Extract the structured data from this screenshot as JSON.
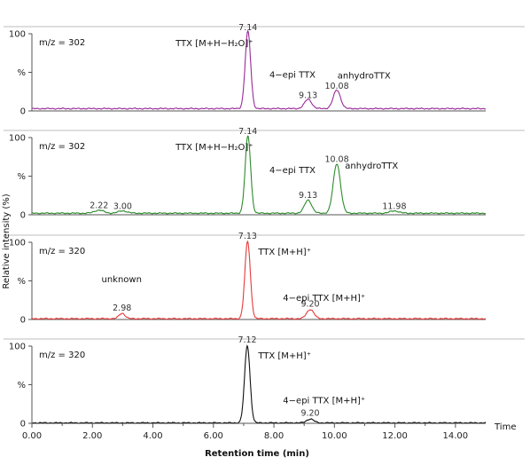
{
  "chart_data": {
    "type": "line",
    "ylabel": "Relative intensity (%)",
    "xlabel": "Retention time (min)",
    "x_unit_label": "Time",
    "xlim": [
      0,
      15
    ],
    "x_ticks": [
      "0.00",
      "2.00",
      "4.00",
      "6.00",
      "8.00",
      "10.00",
      "12.00",
      "14.00"
    ],
    "y_ticks": [
      "0",
      "%",
      "100"
    ],
    "panels": [
      {
        "mz_label": "m/z = 302",
        "color": "#9a2a9a",
        "ylim": [
          0,
          100
        ],
        "peaks": [
          [
            7.14,
            100,
            0.09
          ],
          [
            9.13,
            12,
            0.12
          ],
          [
            10.08,
            24,
            0.12
          ]
        ],
        "baseline": 3,
        "peak_labels": [
          {
            "text": "7.14",
            "x": 7.14,
            "y": 100
          },
          {
            "text": "9.13",
            "x": 9.13,
            "y": 12
          },
          {
            "text": "10.08",
            "x": 10.08,
            "y": 24
          }
        ],
        "annotations": [
          {
            "text": "TTX [M+H−H₂O]⁺",
            "x": 4.75,
            "y": 84
          },
          {
            "text": "4−epi TTX",
            "x": 7.85,
            "y": 43
          },
          {
            "text": "anhydroTTX",
            "x": 10.1,
            "y": 42
          }
        ]
      },
      {
        "mz_label": "m/z = 302",
        "color": "#2e8b2e",
        "ylim": [
          0,
          100
        ],
        "peaks": [
          [
            2.22,
            4,
            0.15
          ],
          [
            3.0,
            3,
            0.15
          ],
          [
            7.14,
            100,
            0.09
          ],
          [
            9.13,
            17,
            0.12
          ],
          [
            10.08,
            64,
            0.12
          ],
          [
            11.98,
            3,
            0.15
          ]
        ],
        "baseline": 2,
        "peak_labels": [
          {
            "text": "2.22",
            "x": 2.22,
            "y": 4
          },
          {
            "text": "3.00",
            "x": 3.0,
            "y": 3
          },
          {
            "text": "7.14",
            "x": 7.14,
            "y": 100
          },
          {
            "text": "9.13",
            "x": 9.13,
            "y": 17
          },
          {
            "text": "10.08",
            "x": 10.08,
            "y": 64
          },
          {
            "text": "11.98",
            "x": 11.98,
            "y": 3
          }
        ],
        "annotations": [
          {
            "text": "TTX [M+H−H₂O]⁺",
            "x": 4.75,
            "y": 84
          },
          {
            "text": "4−epi TTX",
            "x": 7.85,
            "y": 54
          },
          {
            "text": "anhydroTTX",
            "x": 10.35,
            "y": 60
          }
        ]
      },
      {
        "mz_label": "m/z = 320",
        "color": "#e53a3a",
        "ylim": [
          0,
          100
        ],
        "peaks": [
          [
            2.98,
            7,
            0.1
          ],
          [
            7.13,
            100,
            0.09
          ],
          [
            9.2,
            12,
            0.12
          ]
        ],
        "baseline": 1,
        "peak_labels": [
          {
            "text": "2.98",
            "x": 2.98,
            "y": 7
          },
          {
            "text": "7.13",
            "x": 7.13,
            "y": 100
          },
          {
            "text": "9.20",
            "x": 9.2,
            "y": 12
          }
        ],
        "annotations": [
          {
            "text": "TTX [M+H]⁺",
            "x": 7.48,
            "y": 84
          },
          {
            "text": "unknown",
            "x": 2.3,
            "y": 48
          },
          {
            "text": "4−epi TTX [M+H]⁺",
            "x": 8.3,
            "y": 24
          }
        ]
      },
      {
        "mz_label": "m/z = 320",
        "color": "#111111",
        "ylim": [
          0,
          100
        ],
        "peaks": [
          [
            7.12,
            100,
            0.09
          ],
          [
            9.2,
            5,
            0.12
          ]
        ],
        "baseline": 0.5,
        "peak_labels": [
          {
            "text": "7.12",
            "x": 7.12,
            "y": 100
          },
          {
            "text": "9.20",
            "x": 9.2,
            "y": 5
          }
        ],
        "annotations": [
          {
            "text": "TTX [M+H]⁺",
            "x": 7.48,
            "y": 84
          },
          {
            "text": "4−epi TTX [M+H]⁺",
            "x": 8.3,
            "y": 26
          }
        ]
      }
    ]
  }
}
